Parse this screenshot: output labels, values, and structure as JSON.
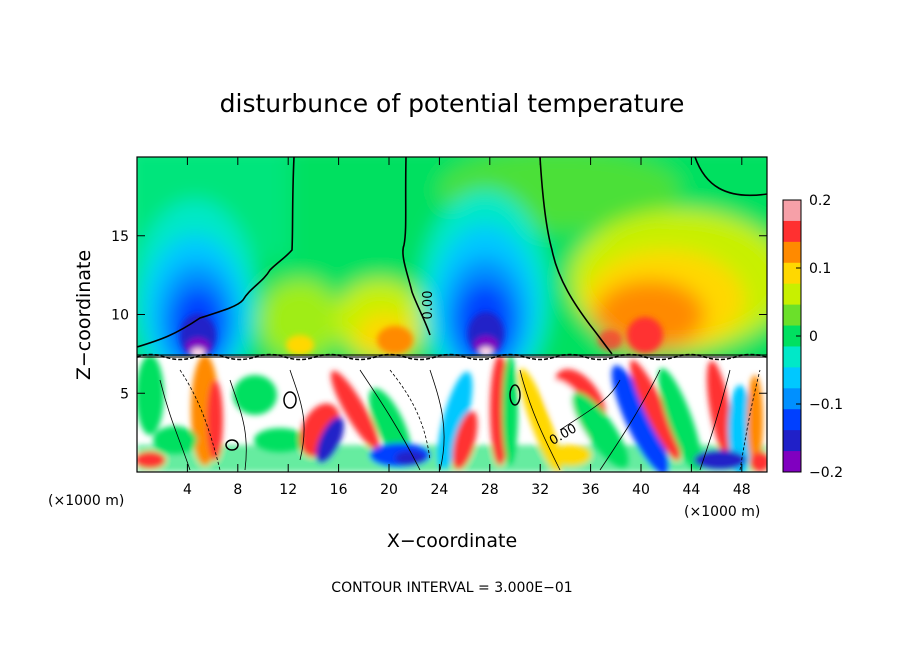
{
  "chart_data": {
    "type": "heatmap",
    "title": "disturbunce of potential temperature",
    "xlabel": "X−coordinate",
    "ylabel": "Z−coordinate",
    "x_unit": "(×1000 m)",
    "y_unit": "(×1000 m)",
    "xlim": [
      0,
      50
    ],
    "ylim": [
      0,
      20
    ],
    "x_ticks": [
      4,
      8,
      12,
      16,
      20,
      24,
      28,
      32,
      36,
      40,
      44,
      48
    ],
    "y_ticks": [
      5,
      10,
      15
    ],
    "colorbar": {
      "range": [
        -0.2,
        0.2
      ],
      "tick_values": [
        0.2,
        0.1,
        0,
        -0.1,
        -0.2
      ],
      "tick_labels": [
        "0.2",
        "0.1",
        "0",
        "−0.1",
        "−0.2"
      ],
      "colors": [
        "#f6a0a8",
        "#ff3030",
        "#ff8a00",
        "#ffd800",
        "#c8f000",
        "#6be02a",
        "#00e060",
        "#00e8c8",
        "#00c8ff",
        "#0090ff",
        "#0040ff",
        "#2020c8",
        "#8000c0"
      ]
    },
    "contour_labels": [
      "0.00",
      "0.00"
    ],
    "annotation": "CONTOUR INTERVAL = 3.000E−01"
  }
}
